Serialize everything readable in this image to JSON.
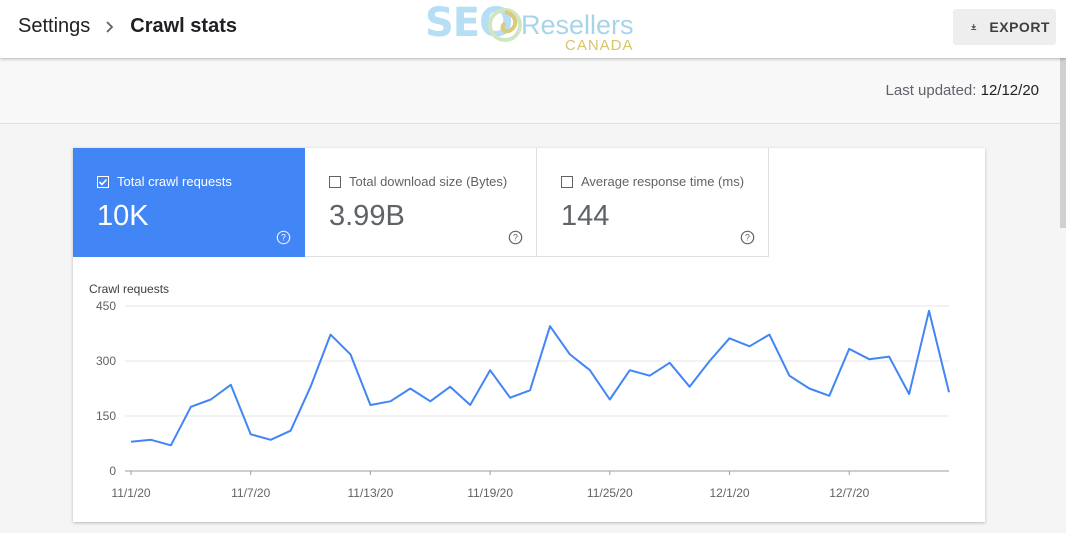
{
  "header": {
    "breadcrumb_root": "Settings",
    "breadcrumb_current": "Crawl stats",
    "export_label": "EXPORT"
  },
  "logo": {
    "seo": "SEO",
    "resellers": "Resellers",
    "canada": "CANADA"
  },
  "status": {
    "last_updated_label": "Last updated:",
    "last_updated_date": "12/12/20"
  },
  "metrics": [
    {
      "label": "Total crawl requests",
      "value": "10K",
      "checked": true
    },
    {
      "label": "Total download size (Bytes)",
      "value": "3.99B",
      "checked": false
    },
    {
      "label": "Average response time (ms)",
      "value": "144",
      "checked": false
    }
  ],
  "colors": {
    "accent": "#4285f4",
    "line": "#4285f4"
  },
  "chart_data": {
    "type": "line",
    "title": "Crawl requests",
    "ylim": [
      0,
      450
    ],
    "yticks": [
      0,
      150,
      300,
      450
    ],
    "xtick_labels": [
      "11/1/20",
      "11/7/20",
      "11/13/20",
      "11/19/20",
      "11/25/20",
      "12/1/20",
      "12/7/20"
    ],
    "xtick_indices": [
      0,
      6,
      12,
      18,
      24,
      30,
      36
    ],
    "grid": true,
    "series": [
      {
        "values": [
          80,
          85,
          70,
          175,
          195,
          235,
          100,
          85,
          110,
          230,
          372,
          318,
          180,
          190,
          225,
          190,
          230,
          180,
          275,
          200,
          220,
          395,
          318,
          275,
          195,
          275,
          260,
          295,
          230,
          300,
          362,
          340,
          372,
          260,
          225,
          205,
          333,
          305,
          312,
          210,
          437,
          215
        ]
      }
    ]
  }
}
